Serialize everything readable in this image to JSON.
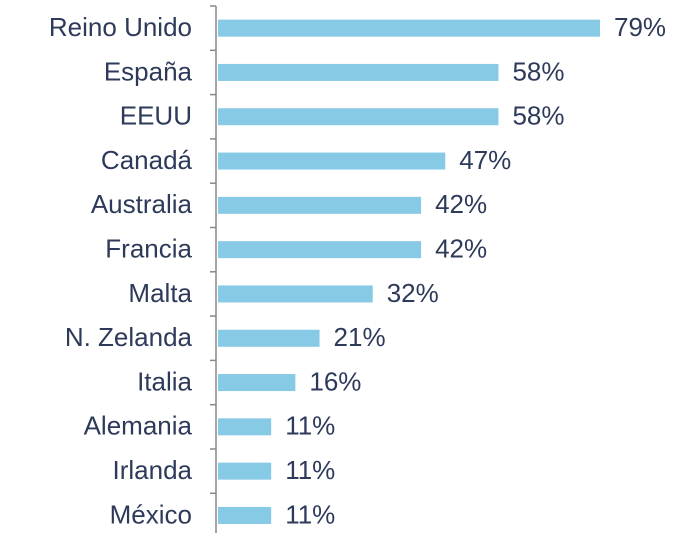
{
  "chart_data": {
    "type": "bar",
    "orientation": "horizontal",
    "categories": [
      "Reino Unido",
      "España",
      "EEUU",
      "Canadá",
      "Australia",
      "Francia",
      "Malta",
      "N. Zelanda",
      "Italia",
      "Alemania",
      "Irlanda",
      "México"
    ],
    "values": [
      79,
      58,
      58,
      47,
      42,
      42,
      32,
      21,
      16,
      11,
      11,
      11
    ],
    "value_labels": [
      "79%",
      "58%",
      "58%",
      "47%",
      "42%",
      "42%",
      "32%",
      "21%",
      "16%",
      "11%",
      "11%",
      "11%"
    ],
    "color": "#87cae6"
  }
}
